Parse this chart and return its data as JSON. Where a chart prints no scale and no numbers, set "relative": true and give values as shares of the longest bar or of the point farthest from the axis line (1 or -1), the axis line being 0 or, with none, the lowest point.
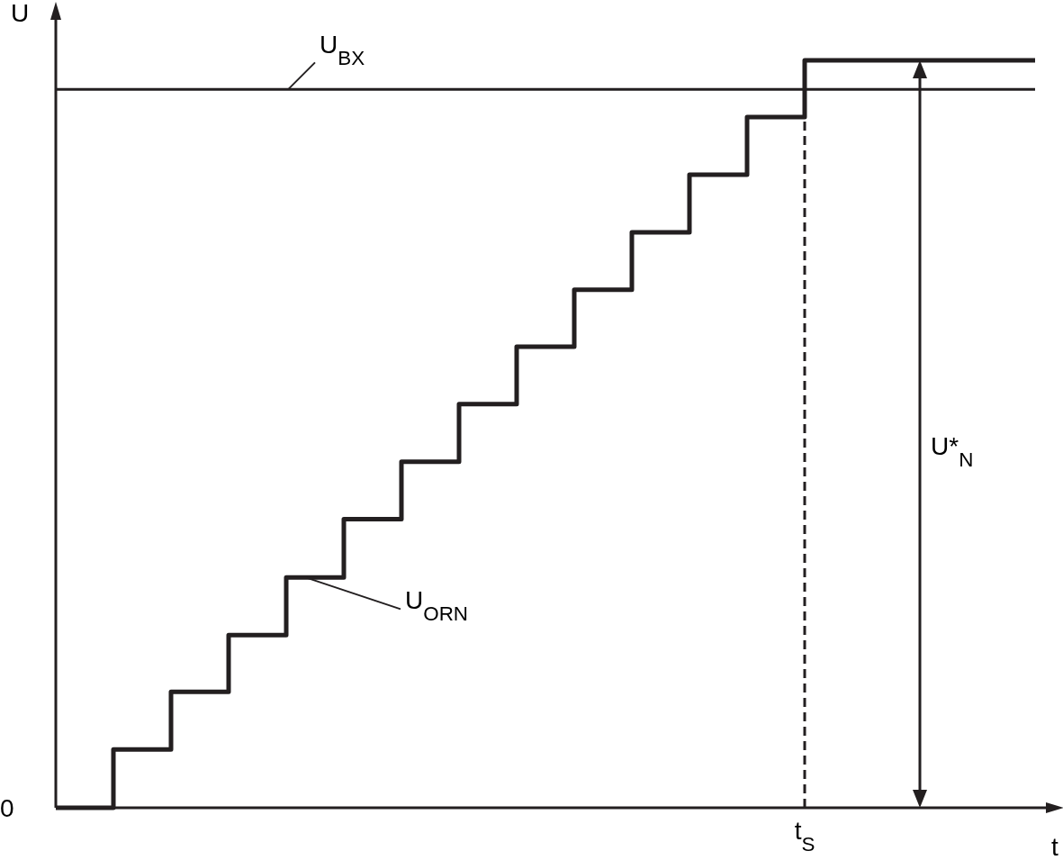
{
  "chart_data": {
    "type": "step",
    "relative": true,
    "xlabel": "t",
    "ylabel": "U",
    "line_style": "solid",
    "categories": [
      null,
      null,
      null,
      null,
      null,
      null,
      null,
      null,
      null,
      null,
      null,
      null,
      null,
      null,
      null,
      null,
      null,
      null
    ],
    "series": [
      {
        "name": "U$_{ORN}$",
        "color": "#231f20",
        "values": [
          0,
          0.078,
          0.155,
          0.231,
          0.308,
          0.386,
          0.463,
          0.54,
          0.617,
          0.693,
          0.77,
          0.847,
          0.924,
          1,
          1,
          1,
          1,
          1
        ]
      }
    ],
    "ref_lines": [
      {
        "axis": "y",
        "value": 0.961,
        "label": "U$_{BX}$",
        "line_style": "solid",
        "color": "#231f20"
      }
    ],
    "annotations": [
      "0",
      "U*$_{N}$",
      "t$_{S}$"
    ]
  }
}
